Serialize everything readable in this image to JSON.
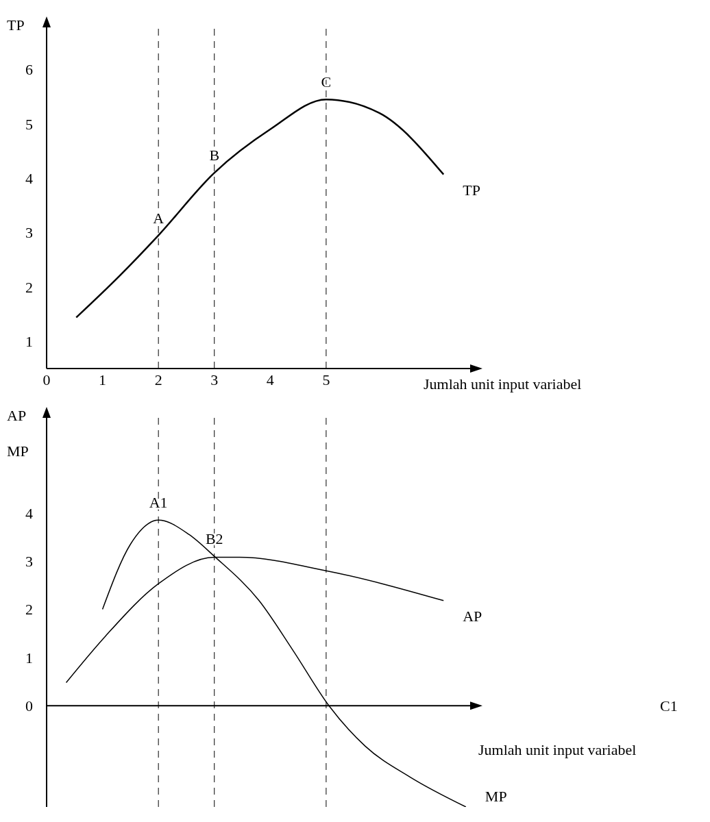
{
  "chart_data": [
    {
      "type": "line",
      "xlabel": "Jumlah unit input variabel",
      "ylabel": "TP",
      "xlim": [
        0,
        7.6
      ],
      "xticks": [
        0,
        1,
        2,
        3,
        4,
        5
      ],
      "ylim": [
        0.5,
        6.8
      ],
      "yticks": [
        1,
        2,
        3,
        4,
        5,
        6
      ],
      "grid": false,
      "legend": false,
      "marker": "none",
      "line_style": "solid",
      "series": [
        {
          "name": "TP",
          "color": "#000000",
          "x": [
            0.53,
            1.3,
            2,
            3,
            4,
            5,
            5.95,
            7.1
          ],
          "values": [
            1.44,
            2.2,
            2.95,
            4.1,
            4.9,
            5.45,
            5.2,
            4.07
          ]
        }
      ],
      "ref_lines": [
        {
          "axis": "x",
          "value": 2,
          "color": "#000000",
          "line_style": "dashed"
        },
        {
          "axis": "x",
          "value": 3,
          "color": "#000000",
          "line_style": "dashed"
        },
        {
          "axis": "x",
          "value": 5,
          "color": "#000000",
          "line_style": "dashed"
        }
      ],
      "annotations": [
        {
          "text": "A",
          "x": 2,
          "y": 2.95
        },
        {
          "text": "B",
          "x": 3,
          "y": 4.1
        },
        {
          "text": "C",
          "x": 5,
          "y": 5.45
        }
      ]
    },
    {
      "type": "line",
      "xlabel": "Jumlah unit input variabel",
      "ylabel": "AP MP",
      "xlim": [
        0,
        7.6
      ],
      "ylim": [
        -2.1,
        6
      ],
      "yticks": [
        0,
        1,
        2,
        3,
        4
      ],
      "tick_labels": "y",
      "grid": false,
      "legend": false,
      "marker": "none",
      "line_style": "solid",
      "series": [
        {
          "name": "AP",
          "color": "#000000",
          "x": [
            0.35,
            1.05,
            2,
            3,
            3.45,
            5,
            7.1
          ],
          "values": [
            0.48,
            1.44,
            2.53,
            3.08,
            3.08,
            2.8,
            2.18
          ]
        },
        {
          "name": "MP",
          "color": "#000000",
          "x": [
            1,
            1.5,
            2,
            2.55,
            3,
            3.8,
            4.4,
            5.05,
            5.7,
            6.5,
            7.5
          ],
          "values": [
            2,
            3.35,
            3.85,
            3.55,
            3.1,
            2.18,
            1.16,
            0,
            -0.84,
            -1.48,
            -2.1
          ]
        }
      ],
      "ref_lines": [
        {
          "axis": "x",
          "value": 2,
          "color": "#000000",
          "line_style": "dashed"
        },
        {
          "axis": "x",
          "value": 3,
          "color": "#000000",
          "line_style": "dashed"
        },
        {
          "axis": "x",
          "value": 5,
          "color": "#000000",
          "line_style": "dashed"
        }
      ],
      "annotations": [
        {
          "text": "A1",
          "x": 2,
          "y": 3.85
        },
        {
          "text": "B2",
          "x": 3,
          "y": 3.1
        },
        "C1"
      ]
    }
  ]
}
